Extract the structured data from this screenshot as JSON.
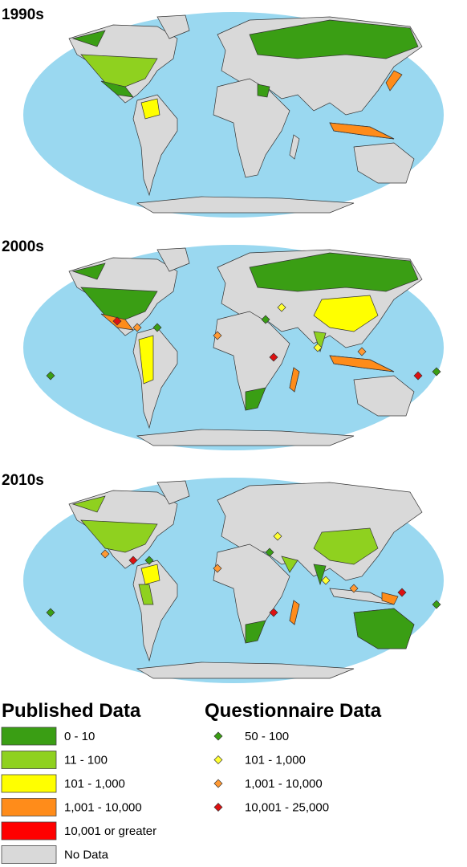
{
  "panels": [
    {
      "label": "1990s"
    },
    {
      "label": "2000s"
    },
    {
      "label": "2010s"
    }
  ],
  "legend": {
    "published": {
      "title": "Published Data",
      "items": [
        {
          "label": "0 - 10",
          "color": "#3a9e14"
        },
        {
          "label": "11 - 100",
          "color": "#8fd11f"
        },
        {
          "label": "101 - 1,000",
          "color": "#ffff00"
        },
        {
          "label": "1,001 - 10,000",
          "color": "#ff8c1a"
        },
        {
          "label": "10,001 or greater",
          "color": "#ff0000"
        },
        {
          "label": "No Data",
          "color": "#d9d9d9"
        }
      ]
    },
    "questionnaire": {
      "title": "Questionnaire Data",
      "items": [
        {
          "label": "50 - 100",
          "color": "#3a9e14"
        },
        {
          "label": "101 - 1,000",
          "color": "#ffff33"
        },
        {
          "label": "1,001 - 10,000",
          "color": "#ff9933"
        },
        {
          "label": "10,001 - 25,000",
          "color": "#dd1111"
        }
      ]
    }
  }
}
